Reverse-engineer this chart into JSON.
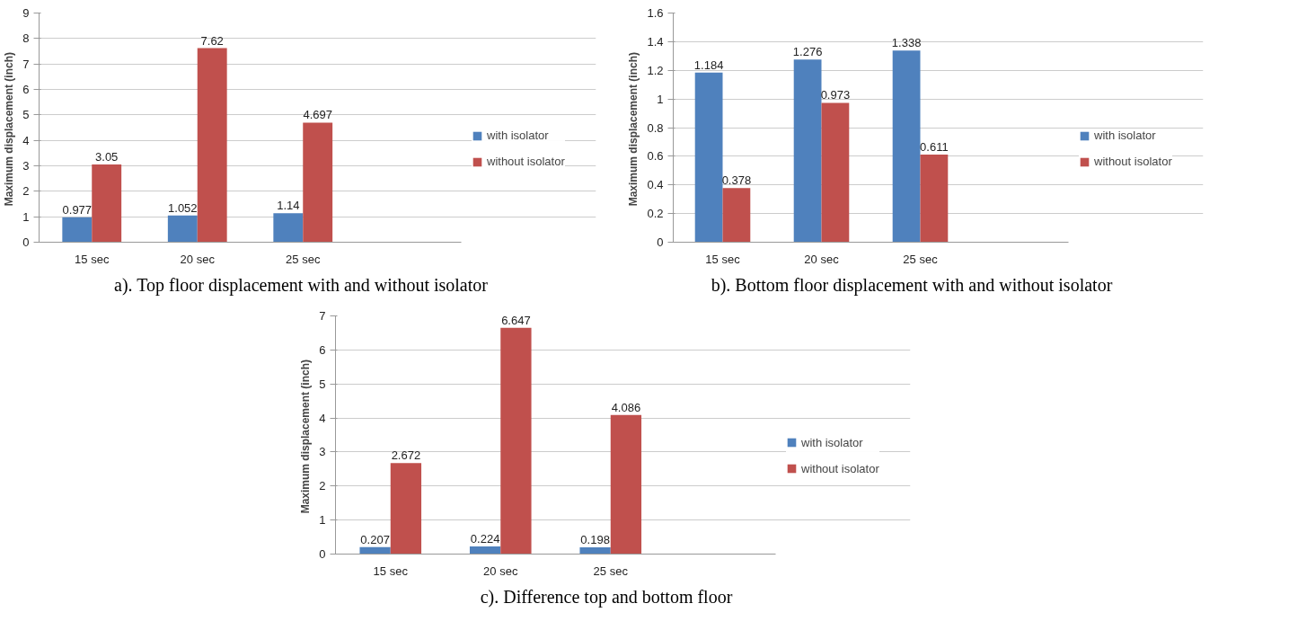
{
  "chart_data": [
    {
      "type": "bar",
      "title": "a). Top floor displacement with and without isolator",
      "ylabel": "Maximum displacement  (inch)",
      "categories": [
        "15 sec",
        "20 sec",
        "25 sec",
        null
      ],
      "series": [
        {
          "name": "with isolator",
          "color": "#4f81bd",
          "values": [
            0.977,
            1.052,
            1.14,
            null
          ]
        },
        {
          "name": "without isolator",
          "color": "#c0504d",
          "values": [
            3.05,
            7.62,
            4.697,
            null
          ]
        }
      ],
      "ylim": [
        0,
        9
      ],
      "yticks": [
        0,
        1,
        2,
        3,
        4,
        5,
        6,
        7,
        8,
        9
      ],
      "grid": "y",
      "legend": "right",
      "data_labels": true
    },
    {
      "type": "bar",
      "title": "b). Bottom floor displacement with and without isolator",
      "ylabel": "Maximum displacement  (inch)",
      "categories": [
        "15 sec",
        "20 sec",
        "25 sec",
        null
      ],
      "series": [
        {
          "name": "with isolator",
          "color": "#4f81bd",
          "values": [
            1.184,
            1.276,
            1.338,
            null
          ]
        },
        {
          "name": "without isolator",
          "color": "#c0504d",
          "values": [
            0.378,
            0.973,
            0.611,
            null
          ]
        }
      ],
      "ylim": [
        0,
        1.6
      ],
      "yticks": [
        0,
        0.2,
        0.4,
        0.6,
        0.8,
        1,
        1.2,
        1.4,
        1.6
      ],
      "grid": "y",
      "legend": "right",
      "data_labels": true
    },
    {
      "type": "bar",
      "title": "c). Difference top and bottom floor",
      "ylabel": "Maximum displacement  (inch)",
      "categories": [
        "15 sec",
        "20 sec",
        "25 sec",
        null
      ],
      "series": [
        {
          "name": "with isolator",
          "color": "#4f81bd",
          "values": [
            0.207,
            0.224,
            0.198,
            null
          ]
        },
        {
          "name": "without isolator",
          "color": "#c0504d",
          "values": [
            2.672,
            6.647,
            4.086,
            null
          ]
        }
      ],
      "ylim": [
        0,
        7
      ],
      "yticks": [
        0,
        1,
        2,
        3,
        4,
        5,
        6,
        7
      ],
      "grid": "y",
      "legend": "right",
      "data_labels": true
    }
  ]
}
